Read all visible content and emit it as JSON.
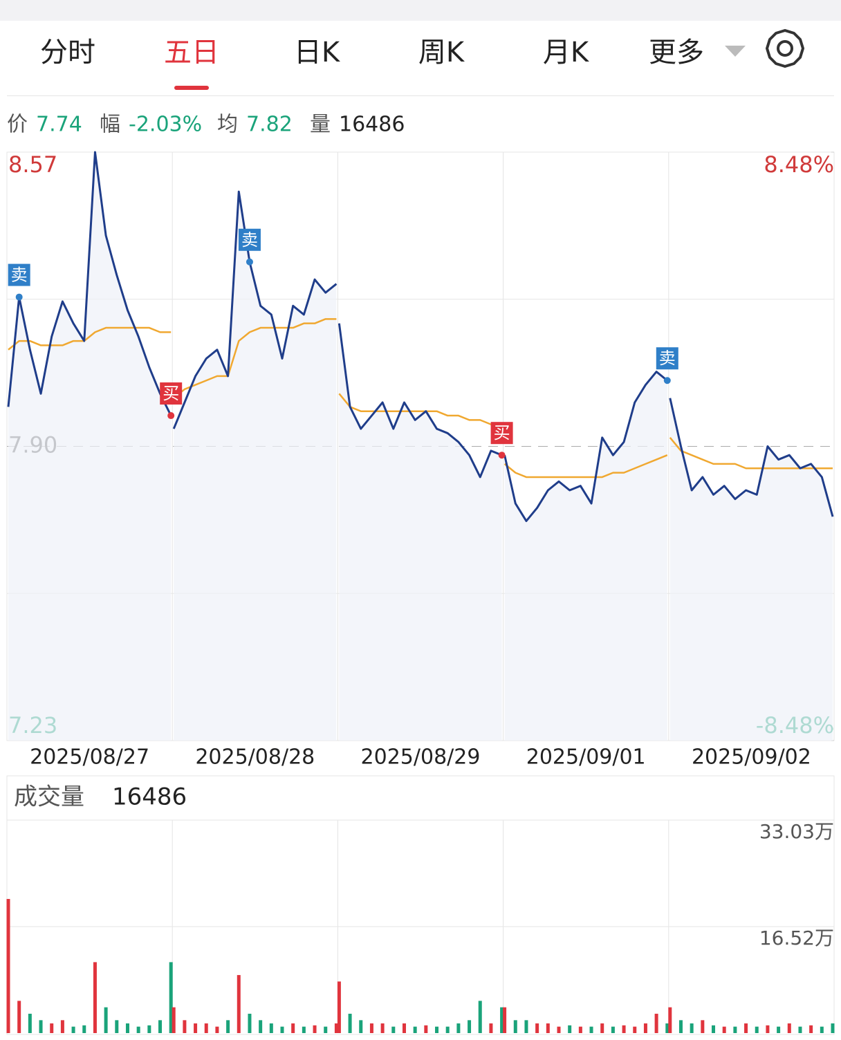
{
  "tabs": [
    "分时",
    "五日",
    "日K",
    "周K",
    "月K",
    "更多"
  ],
  "active_tab": 1,
  "info": [
    {
      "label": "价",
      "value": "7.74"
    },
    {
      "label": "幅",
      "value": "-2.03%"
    },
    {
      "label": "均",
      "value": "7.82"
    },
    {
      "label": "量",
      "value": "16486"
    }
  ],
  "volume_header": {
    "label": "成交量",
    "value": "16486"
  },
  "chart_data": [
    {
      "type": "line",
      "categories": [
        "2025/08/27",
        "2025/08/28",
        "2025/08/29",
        "2025/09/01",
        "2025/09/02"
      ],
      "ylim": [
        7.23,
        8.57
      ],
      "yticks": [
        8.57,
        {
          "value": 7.9,
          "label": "7.90"
        },
        7.23
      ],
      "y2lim": [
        -8.48,
        8.48
      ],
      "y2ticks": [
        {
          "value": 8.48,
          "label": "8.48%"
        },
        {
          "value": -8.48,
          "label": "-8.48%"
        }
      ],
      "series": [
        {
          "color": "#1f3d8a",
          "values": [
            [
              7.99,
              8.24,
              8.12,
              8.02,
              8.15,
              8.23,
              8.18,
              8.14,
              8.57,
              8.38,
              8.29,
              8.21,
              8.15,
              8.08,
              8.02,
              7.97
            ],
            [
              7.94,
              8.0,
              8.06,
              8.1,
              8.12,
              8.06,
              8.48,
              8.32,
              8.22,
              8.2,
              8.1,
              8.22,
              8.2,
              8.28,
              8.25,
              8.27
            ],
            [
              8.18,
              7.99,
              7.94,
              7.97,
              8.0,
              7.94,
              8.0,
              7.96,
              7.98,
              7.94,
              7.93,
              7.91,
              7.88,
              7.83,
              7.89,
              7.88
            ],
            [
              7.88,
              7.77,
              7.73,
              7.76,
              7.8,
              7.82,
              7.8,
              7.81,
              7.77,
              7.92,
              7.88,
              7.91,
              8.0,
              8.04,
              8.07,
              8.05
            ],
            [
              8.01,
              7.9,
              7.8,
              7.83,
              7.79,
              7.81,
              7.78,
              7.8,
              7.79,
              7.9,
              7.87,
              7.88,
              7.85,
              7.86,
              7.83,
              7.74
            ]
          ]
        },
        {
          "color": "#f0a830",
          "values": [
            [
              8.12,
              8.14,
              8.14,
              8.13,
              8.13,
              8.13,
              8.14,
              8.14,
              8.16,
              8.17,
              8.17,
              8.17,
              8.17,
              8.17,
              8.16,
              8.16
            ],
            [
              8.01,
              8.03,
              8.04,
              8.05,
              8.06,
              8.06,
              8.14,
              8.16,
              8.17,
              8.17,
              8.17,
              8.17,
              8.18,
              8.18,
              8.19,
              8.19
            ],
            [
              8.02,
              7.99,
              7.98,
              7.98,
              7.98,
              7.98,
              7.98,
              7.98,
              7.98,
              7.98,
              7.97,
              7.97,
              7.96,
              7.96,
              7.95,
              7.95
            ],
            [
              7.86,
              7.84,
              7.83,
              7.83,
              7.83,
              7.83,
              7.83,
              7.83,
              7.83,
              7.83,
              7.84,
              7.84,
              7.85,
              7.86,
              7.87,
              7.88
            ],
            [
              7.92,
              7.89,
              7.88,
              7.87,
              7.86,
              7.86,
              7.86,
              7.85,
              7.85,
              7.85,
              7.85,
              7.85,
              7.85,
              7.85,
              7.85,
              7.85
            ]
          ]
        }
      ],
      "annotations": [
        {
          "text": "卖",
          "day": 0,
          "index": 1,
          "color": "#2f7fc8"
        },
        {
          "text": "买",
          "day": 0,
          "index": 15,
          "color": "#e0343d"
        },
        {
          "text": "卖",
          "day": 1,
          "index": 7,
          "color": "#2f7fc8"
        },
        {
          "text": "买",
          "day": 2,
          "index": 15,
          "color": "#e0343d"
        },
        {
          "text": "卖",
          "day": 3,
          "index": 15,
          "color": "#2f7fc8"
        }
      ]
    },
    {
      "type": "bar",
      "ylim": [
        0,
        33.03
      ],
      "yticks": [
        {
          "value": 33.03,
          "label": "33.03万"
        },
        {
          "value": 16.52,
          "label": "16.52万"
        }
      ],
      "colors": [
        "#e0343d",
        "#1aa37a"
      ],
      "values": [
        [
          20.8,
          5,
          3,
          2,
          1.5,
          2,
          1,
          1.2,
          11,
          4,
          2,
          1.5,
          1,
          1.2,
          2,
          11
        ],
        [
          4,
          2,
          1.5,
          1.5,
          1,
          2,
          9,
          3,
          2,
          1.5,
          1,
          1.5,
          1,
          1.2,
          1,
          1.5
        ],
        [
          8,
          3,
          2,
          1.5,
          1.5,
          1,
          1.5,
          1,
          1.2,
          1,
          1,
          1.5,
          2,
          5,
          1.5,
          4
        ],
        [
          4,
          2,
          2,
          1.5,
          1.5,
          1,
          1.2,
          1,
          1,
          1.5,
          1,
          1.2,
          1,
          1.5,
          3,
          1.5
        ],
        [
          4,
          2,
          1.5,
          2,
          1.2,
          1,
          1,
          1.5,
          1,
          1.2,
          1,
          1.5,
          1,
          1.2,
          1,
          1.5
        ]
      ]
    }
  ]
}
